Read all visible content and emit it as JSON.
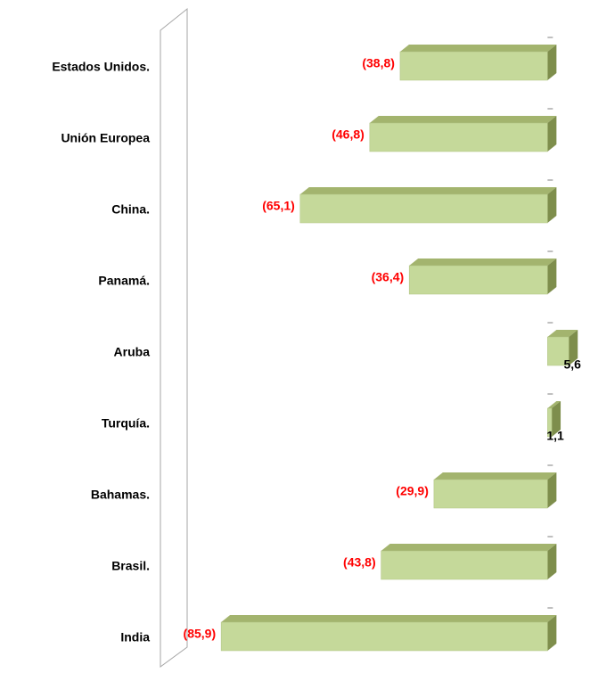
{
  "chart_data": {
    "type": "bar",
    "orientation": "horizontal",
    "categories": [
      "Estados Unidos.",
      "Unión Europea",
      "China.",
      "Panamá.",
      "Aruba",
      "Turquía.",
      "Bahamas.",
      "Brasil.",
      "India"
    ],
    "values": [
      -38.8,
      -46.8,
      -65.1,
      -36.4,
      5.6,
      1.1,
      -29.9,
      -43.8,
      -85.9
    ],
    "value_labels": [
      "(38,8)",
      "(46,8)",
      "(65,1)",
      "(36,4)",
      "5,6",
      "1,1",
      "(29,9)",
      "(43,8)",
      "(85,9)"
    ],
    "color": "#c5d99a",
    "negative_label_color": "#ff0000",
    "positive_label_color": "#000000",
    "xlim": [
      -100,
      10
    ]
  }
}
